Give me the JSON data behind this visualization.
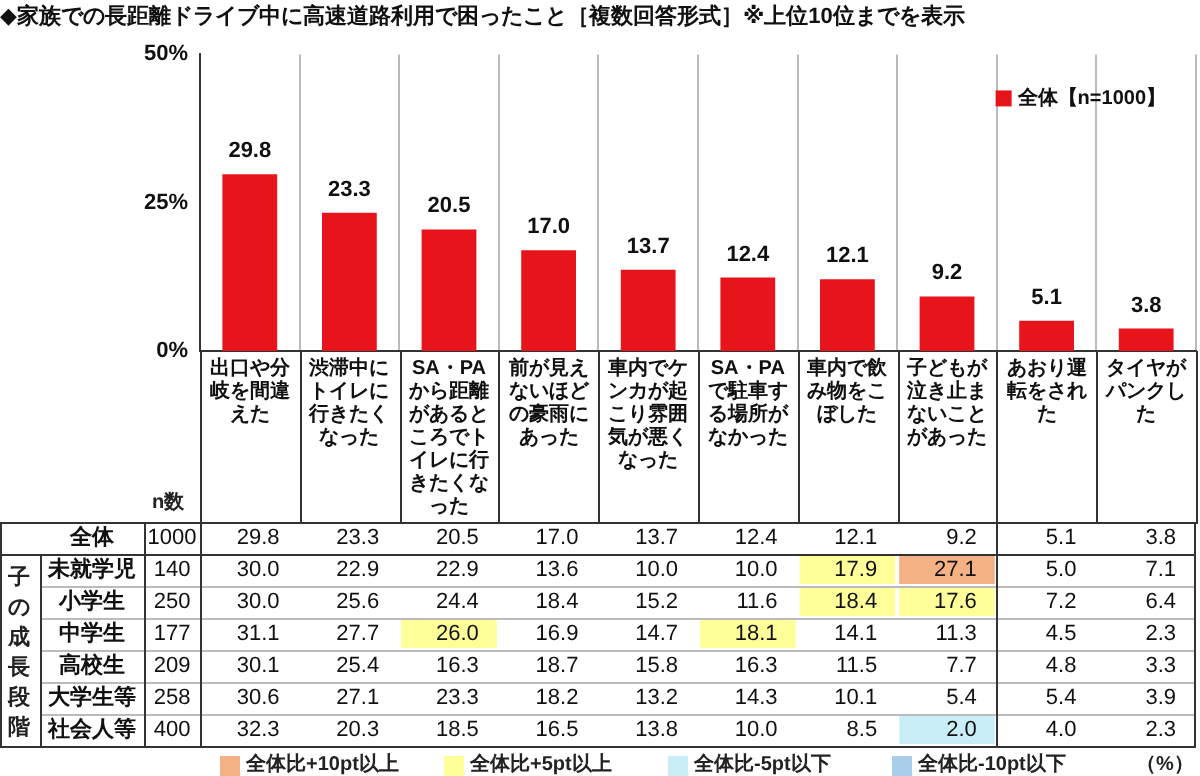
{
  "chart_data": [
    {
      "type": "bar",
      "title": "◆家族での長距離ドライブ中に高速道路利用で困ったこと［複数回答形式］※上位10位までを表示",
      "categories": [
        "出口や分岐を間違えた",
        "渋滞中にトイレに行きたくなった",
        "SA・PAから距離があるところでトイレに行きたくなった",
        "前が見えないほどの豪雨にあった",
        "車内でケンカが起こり雰囲気が悪くなった",
        "SA・PAで駐車する場所がなかった",
        "車内で飲み物をこぼした",
        "子どもが泣き止まないことがあった",
        "あおり運転をされた",
        "タイヤがパンクした"
      ],
      "series": [
        {
          "name": "全体【n=1000】",
          "color": "#e8141c",
          "values": [
            29.8,
            23.3,
            20.5,
            17.0,
            13.7,
            12.4,
            12.1,
            9.2,
            5.1,
            3.8
          ],
          "value_labels": [
            "29.8",
            "23.3",
            "20.5",
            "17.0",
            "13.7",
            "12.4",
            "12.1",
            "9.2",
            "5.1",
            "3.8"
          ]
        }
      ],
      "ylim": [
        0,
        50
      ],
      "yticks": [
        {
          "value": 0,
          "label": "0%"
        },
        {
          "value": 25,
          "label": "25%"
        },
        {
          "value": 50,
          "label": "50%"
        }
      ],
      "grid": "x",
      "legend": "top right"
    },
    {
      "type": "heatmap",
      "categories": [
        null,
        null,
        null,
        null,
        null,
        null,
        null,
        null,
        null,
        null
      ],
      "y_categories": [
        "全体",
        "未就学児",
        "小学生",
        "中学生",
        "高校生",
        "大学生等",
        "社会人等"
      ],
      "y2_categories": [
        "1000",
        "140",
        "250",
        "177",
        "209",
        "258",
        "400"
      ],
      "cells": [
        [
          29.8,
          23.3,
          20.5,
          17.0,
          13.7,
          12.4,
          12.1,
          9.2,
          5.1,
          3.8
        ],
        [
          30.0,
          22.9,
          22.9,
          13.6,
          10.0,
          10.0,
          17.9,
          27.1,
          5.0,
          7.1
        ],
        [
          30.0,
          25.6,
          24.4,
          18.4,
          15.2,
          11.6,
          18.4,
          17.6,
          7.2,
          6.4
        ],
        [
          31.1,
          27.7,
          26.0,
          16.9,
          14.7,
          18.1,
          14.1,
          11.3,
          4.5,
          2.3
        ],
        [
          30.1,
          25.4,
          16.3,
          18.7,
          15.8,
          16.3,
          11.5,
          7.7,
          4.8,
          3.3
        ],
        [
          30.6,
          27.1,
          23.3,
          18.2,
          13.2,
          14.3,
          10.1,
          5.4,
          5.4,
          3.9
        ],
        [
          32.3,
          20.3,
          18.5,
          16.5,
          13.8,
          10.0,
          8.5,
          2.0,
          4.0,
          2.3
        ]
      ],
      "cell_labels": [
        [
          "29.8",
          "23.3",
          "20.5",
          "17.0",
          "13.7",
          "12.4",
          "12.1",
          "9.2",
          "5.1",
          "3.8"
        ],
        [
          "30.0",
          "22.9",
          "22.9",
          "13.6",
          "10.0",
          "10.0",
          "17.9",
          "27.1",
          "5.0",
          "7.1"
        ],
        [
          "30.0",
          "25.6",
          "24.4",
          "18.4",
          "15.2",
          "11.6",
          "18.4",
          "17.6",
          "7.2",
          "6.4"
        ],
        [
          "31.1",
          "27.7",
          "26.0",
          "16.9",
          "14.7",
          "18.1",
          "14.1",
          "11.3",
          "4.5",
          "2.3"
        ],
        [
          "30.1",
          "25.4",
          "16.3",
          "18.7",
          "15.8",
          "16.3",
          "11.5",
          "7.7",
          "4.8",
          "3.3"
        ],
        [
          "30.6",
          "27.1",
          "23.3",
          "18.2",
          "13.2",
          "14.3",
          "10.1",
          "5.4",
          "5.4",
          "3.9"
        ],
        [
          "32.3",
          "20.3",
          "18.5",
          "16.5",
          "13.8",
          "10.0",
          "8.5",
          "2.0",
          "4.0",
          "2.3"
        ]
      ],
      "annotations": [
        "n数",
        "子の成長段階",
        "全体比+10pt以上",
        "全体比+5pt以上",
        "全体比-5pt以下",
        "全体比-10pt以下",
        "（%）"
      ]
    }
  ]
}
